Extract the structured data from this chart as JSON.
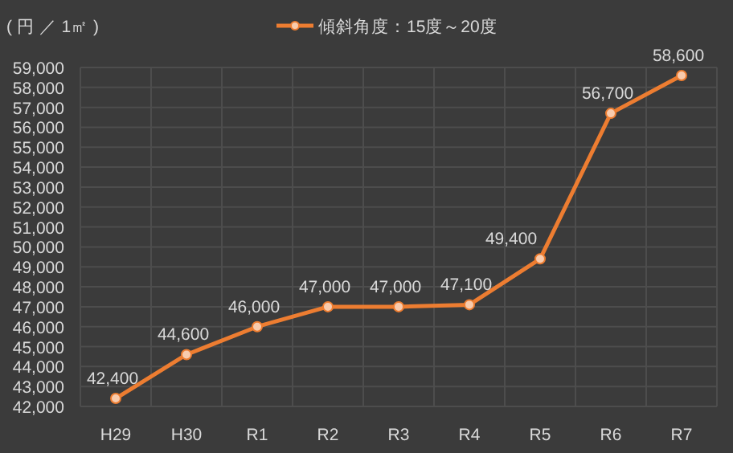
{
  "chart_data": {
    "type": "line",
    "ylabel": "( 円 ／ 1㎡ )",
    "categories": [
      "H29",
      "H30",
      "R1",
      "R2",
      "R3",
      "R4",
      "R5",
      "R6",
      "R7"
    ],
    "series": [
      {
        "name": "傾斜角度：15度～20度",
        "color": "#ed7d31",
        "values": [
          42400,
          44600,
          46000,
          47000,
          47000,
          47100,
          49400,
          56700,
          58600
        ],
        "value_labels": [
          "42,400",
          "44,600",
          "46,000",
          "47,000",
          "47,000",
          "47,100",
          "49,400",
          "56,700",
          "58,600"
        ]
      }
    ],
    "ylim": [
      42000,
      59000
    ],
    "yticks": [
      {
        "value": 42000,
        "label": "42,000"
      },
      {
        "value": 43000,
        "label": "43,000"
      },
      {
        "value": 44000,
        "label": "44,000"
      },
      {
        "value": 45000,
        "label": "45,000"
      },
      {
        "value": 46000,
        "label": "46,000"
      },
      {
        "value": 47000,
        "label": "47,000"
      },
      {
        "value": 48000,
        "label": "48,000"
      },
      {
        "value": 49000,
        "label": "49,000"
      },
      {
        "value": 50000,
        "label": "50,000"
      },
      {
        "value": 51000,
        "label": "51,000"
      },
      {
        "value": 52000,
        "label": "52,000"
      },
      {
        "value": 53000,
        "label": "53,000"
      },
      {
        "value": 54000,
        "label": "54,000"
      },
      {
        "value": 55000,
        "label": "55,000"
      },
      {
        "value": 56000,
        "label": "56,000"
      },
      {
        "value": 57000,
        "label": "57,000"
      },
      {
        "value": 58000,
        "label": "58,000"
      },
      {
        "value": 59000,
        "label": "59,000"
      }
    ],
    "grid": true,
    "legend": "top",
    "marker": "circle",
    "line_style": "solid"
  }
}
